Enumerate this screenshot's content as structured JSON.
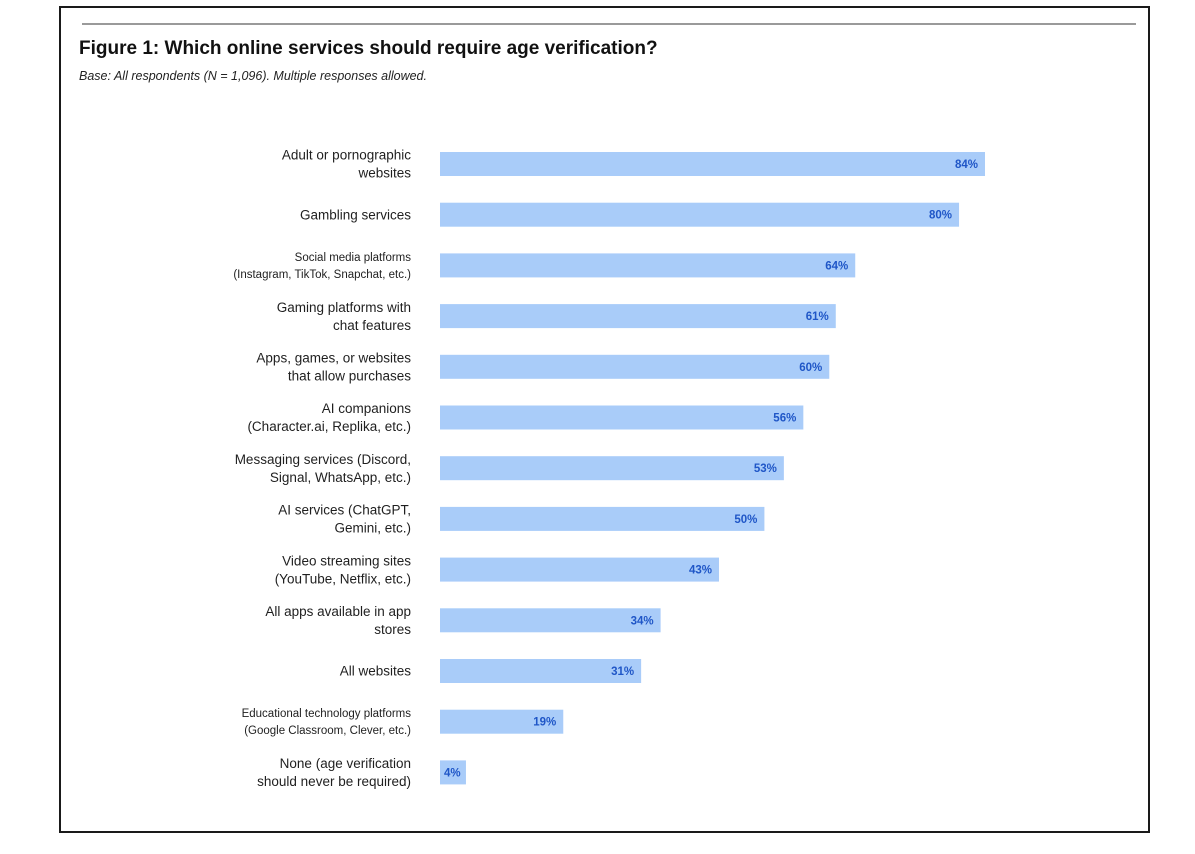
{
  "chart_data": {
    "type": "bar",
    "orientation": "horizontal",
    "title": "Figure 1: Which online services should require age verification?",
    "subtitle": "Base: All respondents (N = 1,096). Multiple responses allowed.",
    "categories": [
      [
        "Adult or pornographic",
        "websites"
      ],
      [
        "Gambling services"
      ],
      [
        "Social media platforms",
        "(Instagram, TikTok, Snapchat, etc.)"
      ],
      [
        "Gaming platforms with",
        "chat features"
      ],
      [
        "Apps, games, or websites",
        "that allow purchases"
      ],
      [
        "AI companions",
        "(Character.ai, Replika, etc.)"
      ],
      [
        "Messaging services (Discord,",
        "Signal, WhatsApp, etc.)"
      ],
      [
        "AI services (ChatGPT,",
        "Gemini, etc.)"
      ],
      [
        "Video streaming sites",
        "(YouTube, Netflix, etc.)"
      ],
      [
        "All apps available in app",
        "stores"
      ],
      [
        "All websites"
      ],
      [
        "Educational technology platforms",
        "(Google Classroom, Clever, etc.)"
      ],
      [
        "None (age verification",
        "should never be required)"
      ]
    ],
    "small_label_indices": [
      2,
      11
    ],
    "values": [
      84,
      80,
      64,
      61,
      60,
      56,
      53,
      50,
      43,
      34,
      31,
      19,
      4
    ],
    "value_labels": [
      "84%",
      "80%",
      "64%",
      "61%",
      "60%",
      "56%",
      "53%",
      "50%",
      "43%",
      "34%",
      "31%",
      "19%",
      "4%"
    ],
    "unit": "%",
    "xlim": [
      0,
      100
    ],
    "grid": false,
    "legend": "none",
    "bar_color": "#a9ccf9",
    "value_label_color": "#1f56c7"
  }
}
